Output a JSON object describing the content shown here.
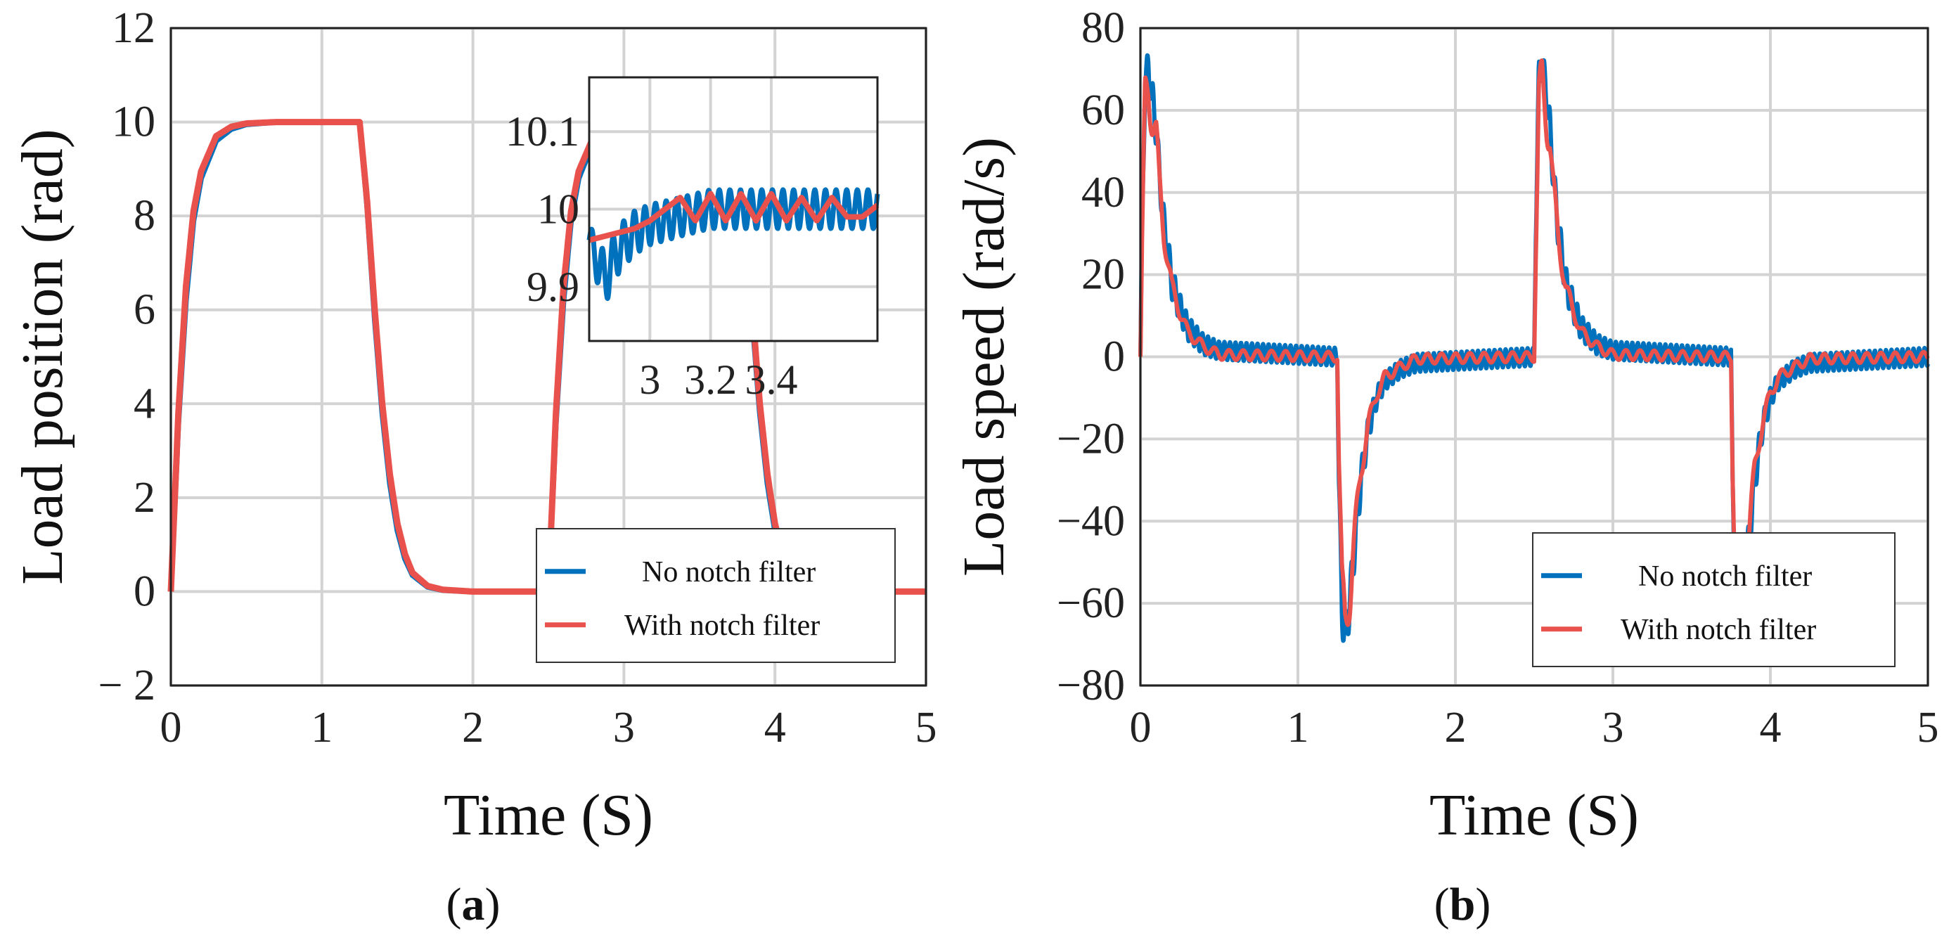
{
  "colors": {
    "no_notch": "#0072BD",
    "with_notch": "#E9514C",
    "grid": "#d3d3d3",
    "frame": "#222222"
  },
  "chart_data": [
    {
      "id": "a",
      "type": "line",
      "panel_label": {
        "open": "(",
        "letter": "a",
        "close": ")"
      },
      "xlabel": "Time (S)",
      "ylabel": "Load position (rad)",
      "xlim": [
        0,
        5
      ],
      "ylim": [
        -2,
        12
      ],
      "xticks": [
        0,
        1,
        2,
        3,
        4,
        5
      ],
      "xtick_labels": [
        "0",
        "1",
        "2",
        "3",
        "4",
        "5"
      ],
      "yticks": [
        -2,
        0,
        2,
        4,
        6,
        8,
        10,
        12
      ],
      "ytick_labels": [
        "− 2",
        "0",
        "2",
        "4",
        "6",
        "8",
        "10",
        "12"
      ],
      "grid": true,
      "legend": {
        "placement": "bottom-right",
        "entries": [
          "No notch filter",
          "With notch filter"
        ]
      },
      "series": [
        {
          "name": "No notch filter",
          "x": [
            0,
            0.05,
            0.1,
            0.15,
            0.2,
            0.3,
            0.4,
            0.5,
            0.7,
            1.25,
            1.3,
            1.35,
            1.4,
            1.45,
            1.5,
            1.55,
            1.6,
            1.7,
            1.8,
            2.0,
            2.5,
            2.55,
            2.6,
            2.65,
            2.7,
            2.8,
            2.9,
            3.0,
            3.5,
            3.75,
            3.8,
            3.85,
            3.9,
            3.95,
            4.0,
            4.05,
            4.1,
            4.2,
            4.3,
            4.5,
            5.0
          ],
          "y": [
            0,
            3.6,
            6.2,
            7.9,
            8.8,
            9.6,
            9.85,
            9.95,
            10.0,
            10.0,
            8.2,
            5.8,
            3.8,
            2.3,
            1.3,
            0.7,
            0.35,
            0.1,
            0.03,
            0,
            0,
            3.6,
            6.2,
            7.9,
            8.8,
            9.6,
            9.85,
            9.95,
            10.0,
            10.0,
            8.2,
            5.8,
            3.8,
            2.3,
            1.3,
            0.7,
            0.35,
            0.1,
            0.03,
            0,
            0
          ]
        },
        {
          "name": "With notch filter",
          "x": [
            0,
            0.05,
            0.1,
            0.15,
            0.2,
            0.3,
            0.4,
            0.5,
            0.7,
            1.25,
            1.3,
            1.35,
            1.4,
            1.45,
            1.5,
            1.55,
            1.6,
            1.7,
            1.8,
            2.0,
            2.5,
            2.55,
            2.6,
            2.65,
            2.7,
            2.8,
            2.9,
            3.0,
            3.5,
            3.75,
            3.8,
            3.85,
            3.9,
            3.95,
            4.0,
            4.05,
            4.1,
            4.2,
            4.3,
            4.5,
            5.0
          ],
          "y": [
            0,
            3.8,
            6.5,
            8.1,
            8.95,
            9.7,
            9.9,
            9.97,
            10.0,
            10.0,
            8.3,
            6.0,
            4.0,
            2.5,
            1.45,
            0.8,
            0.4,
            0.12,
            0.04,
            0,
            0,
            3.8,
            6.5,
            8.1,
            8.95,
            9.7,
            9.9,
            9.97,
            10.0,
            10.0,
            8.3,
            6.0,
            4.0,
            2.5,
            1.45,
            0.8,
            0.4,
            0.12,
            0.04,
            0,
            0
          ]
        }
      ],
      "inset": {
        "xlim": [
          2.8,
          3.75
        ],
        "ylim": [
          9.83,
          10.17
        ],
        "xticks": [
          3,
          3.2,
          3.4
        ],
        "xtick_labels": [
          "3",
          "3.2",
          "3.4"
        ],
        "yticks": [
          9.9,
          10,
          10.1
        ],
        "ytick_labels": [
          "9.9",
          "10",
          "10.1"
        ],
        "grid": true,
        "series": [
          {
            "name": "No notch filter",
            "x": [
              2.8,
              2.85,
              2.9,
              2.95,
              3.0,
              3.1,
              3.2,
              3.3,
              3.4,
              3.5,
              3.6,
              3.7,
              3.75
            ],
            "y": [
              9.96,
              9.91,
              9.95,
              9.97,
              9.98,
              9.99,
              10.0,
              10.0,
              10.0,
              10.0,
              10.0,
              10.0,
              10.0
            ],
            "osc_amplitude": [
              0.02,
              0.035,
              0.03,
              0.028,
              0.026,
              0.025,
              0.025,
              0.025,
              0.025,
              0.025,
              0.025,
              0.025,
              0.025
            ],
            "osc_period": 0.035
          },
          {
            "name": "With notch filter",
            "x": [
              2.8,
              2.9,
              2.95,
              3.0,
              3.05,
              3.1,
              3.15,
              3.2,
              3.25,
              3.3,
              3.35,
              3.4,
              3.45,
              3.5,
              3.55,
              3.6,
              3.65,
              3.7,
              3.75
            ],
            "y": [
              9.96,
              9.97,
              9.975,
              9.985,
              10.0,
              10.015,
              9.985,
              10.02,
              9.985,
              10.02,
              9.985,
              10.02,
              9.985,
              10.015,
              9.985,
              10.015,
              9.99,
              9.99,
              10.005
            ]
          }
        ]
      }
    },
    {
      "id": "b",
      "type": "line",
      "panel_label": {
        "open": "(",
        "letter": "b",
        "close": ")"
      },
      "xlabel": "Time (S)",
      "ylabel": "Load speed (rad/s)",
      "xlim": [
        0,
        5
      ],
      "ylim": [
        -80,
        80
      ],
      "xticks": [
        0,
        1,
        2,
        3,
        4,
        5
      ],
      "xtick_labels": [
        "0",
        "1",
        "2",
        "3",
        "4",
        "5"
      ],
      "yticks": [
        -80,
        -60,
        -40,
        -20,
        0,
        20,
        40,
        60,
        80
      ],
      "ytick_labels": [
        "−80",
        "−60",
        "−40",
        "−20",
        "0",
        "20",
        "40",
        "60",
        "80"
      ],
      "grid": true,
      "legend": {
        "placement": "bottom-right",
        "entries": [
          "No notch filter",
          "With notch filter"
        ]
      },
      "series": [
        {
          "name": "No notch filter",
          "oscillatory": true,
          "osc_period": 0.035,
          "x": [
            0,
            0.01,
            0.03,
            0.05,
            0.08,
            0.1,
            0.12,
            0.15,
            0.18,
            0.2,
            0.25,
            0.3,
            0.4,
            0.5,
            1.25,
            1.26,
            1.28,
            1.3,
            1.33,
            1.35,
            1.37,
            1.4,
            1.43,
            1.45,
            1.5,
            1.55,
            1.65,
            1.75,
            2.5,
            2.51,
            2.53,
            2.55,
            2.58,
            2.6,
            2.62,
            2.65,
            2.68,
            2.7,
            2.75,
            2.8,
            2.9,
            3.0,
            3.75,
            3.76,
            3.78,
            3.8,
            3.83,
            3.85,
            3.87,
            3.9,
            3.93,
            3.95,
            4.0,
            4.05,
            4.15,
            4.25,
            5.0
          ],
          "y": [
            0,
            30,
            68,
            70,
            62,
            55,
            45,
            32,
            24,
            18,
            12,
            7,
            3,
            1.5,
            0,
            -30,
            -62,
            -68,
            -60,
            -50,
            -42,
            -30,
            -22,
            -17,
            -10,
            -6,
            -3,
            -1.5,
            0,
            30,
            68,
            72,
            63,
            56,
            45,
            32,
            24,
            18,
            12,
            7,
            3,
            1.5,
            0,
            -30,
            -62,
            -68,
            -60,
            -50,
            -42,
            -30,
            -22,
            -17,
            -10,
            -6,
            -3,
            -1.5,
            0
          ],
          "osc_amplitude": [
            0,
            3,
            4,
            4,
            4,
            4,
            4,
            4,
            4,
            4,
            3.5,
            3,
            2.5,
            2.2,
            2.2,
            3,
            5,
            5,
            5,
            5,
            4.5,
            4,
            3.5,
            3,
            2.5,
            2.2,
            2.2,
            2.2,
            2.2,
            3,
            4,
            4,
            4,
            4,
            4,
            4,
            4,
            4,
            3.5,
            3,
            2.5,
            2.2,
            2.2,
            3,
            5,
            5,
            5,
            5,
            4.5,
            4,
            3.5,
            3,
            2.5,
            2.2,
            2.2,
            2.2,
            2.2
          ]
        },
        {
          "name": "With notch filter",
          "oscillatory": true,
          "osc_period": 0.09,
          "x": [
            0,
            0.01,
            0.03,
            0.05,
            0.08,
            0.1,
            0.12,
            0.15,
            0.18,
            0.2,
            0.25,
            0.3,
            0.4,
            0.5,
            1.25,
            1.26,
            1.28,
            1.3,
            1.33,
            1.35,
            1.37,
            1.4,
            1.43,
            1.45,
            1.5,
            1.55,
            1.65,
            1.75,
            2.5,
            2.51,
            2.53,
            2.55,
            2.58,
            2.6,
            2.62,
            2.65,
            2.68,
            2.7,
            2.75,
            2.8,
            2.9,
            3.0,
            3.75,
            3.76,
            3.78,
            3.8,
            3.83,
            3.85,
            3.87,
            3.9,
            3.93,
            3.95,
            4.0,
            4.05,
            4.15,
            4.25,
            5.0
          ],
          "y": [
            0,
            25,
            62,
            66,
            58,
            54,
            42,
            30,
            22,
            17,
            11,
            6,
            2.5,
            0.5,
            0,
            -25,
            -58,
            -65,
            -57,
            -48,
            -40,
            -28,
            -20,
            -16,
            -9,
            -5,
            -2.5,
            -0.5,
            0,
            25,
            62,
            66,
            58,
            54,
            42,
            30,
            22,
            17,
            11,
            6,
            2.5,
            0.5,
            0,
            -25,
            -58,
            -65,
            -57,
            -48,
            -40,
            -28,
            -20,
            -16,
            -9,
            -5,
            -2.5,
            -0.5,
            0
          ],
          "osc_amplitude": [
            0,
            4,
            7,
            7,
            6,
            5,
            4,
            3,
            2.5,
            2,
            1.6,
            1.4,
            1.2,
            1.2,
            1.2,
            4,
            7,
            7,
            6,
            5,
            4,
            3,
            2.5,
            2,
            1.6,
            1.4,
            1.2,
            1.2,
            1.2,
            4,
            7,
            7,
            6,
            5,
            4,
            3,
            2.5,
            2,
            1.6,
            1.4,
            1.2,
            1.2,
            1.2,
            4,
            7,
            7,
            6,
            5,
            4,
            3,
            2.5,
            2,
            1.6,
            1.4,
            1.2,
            1.2,
            1.2
          ]
        }
      ]
    }
  ]
}
